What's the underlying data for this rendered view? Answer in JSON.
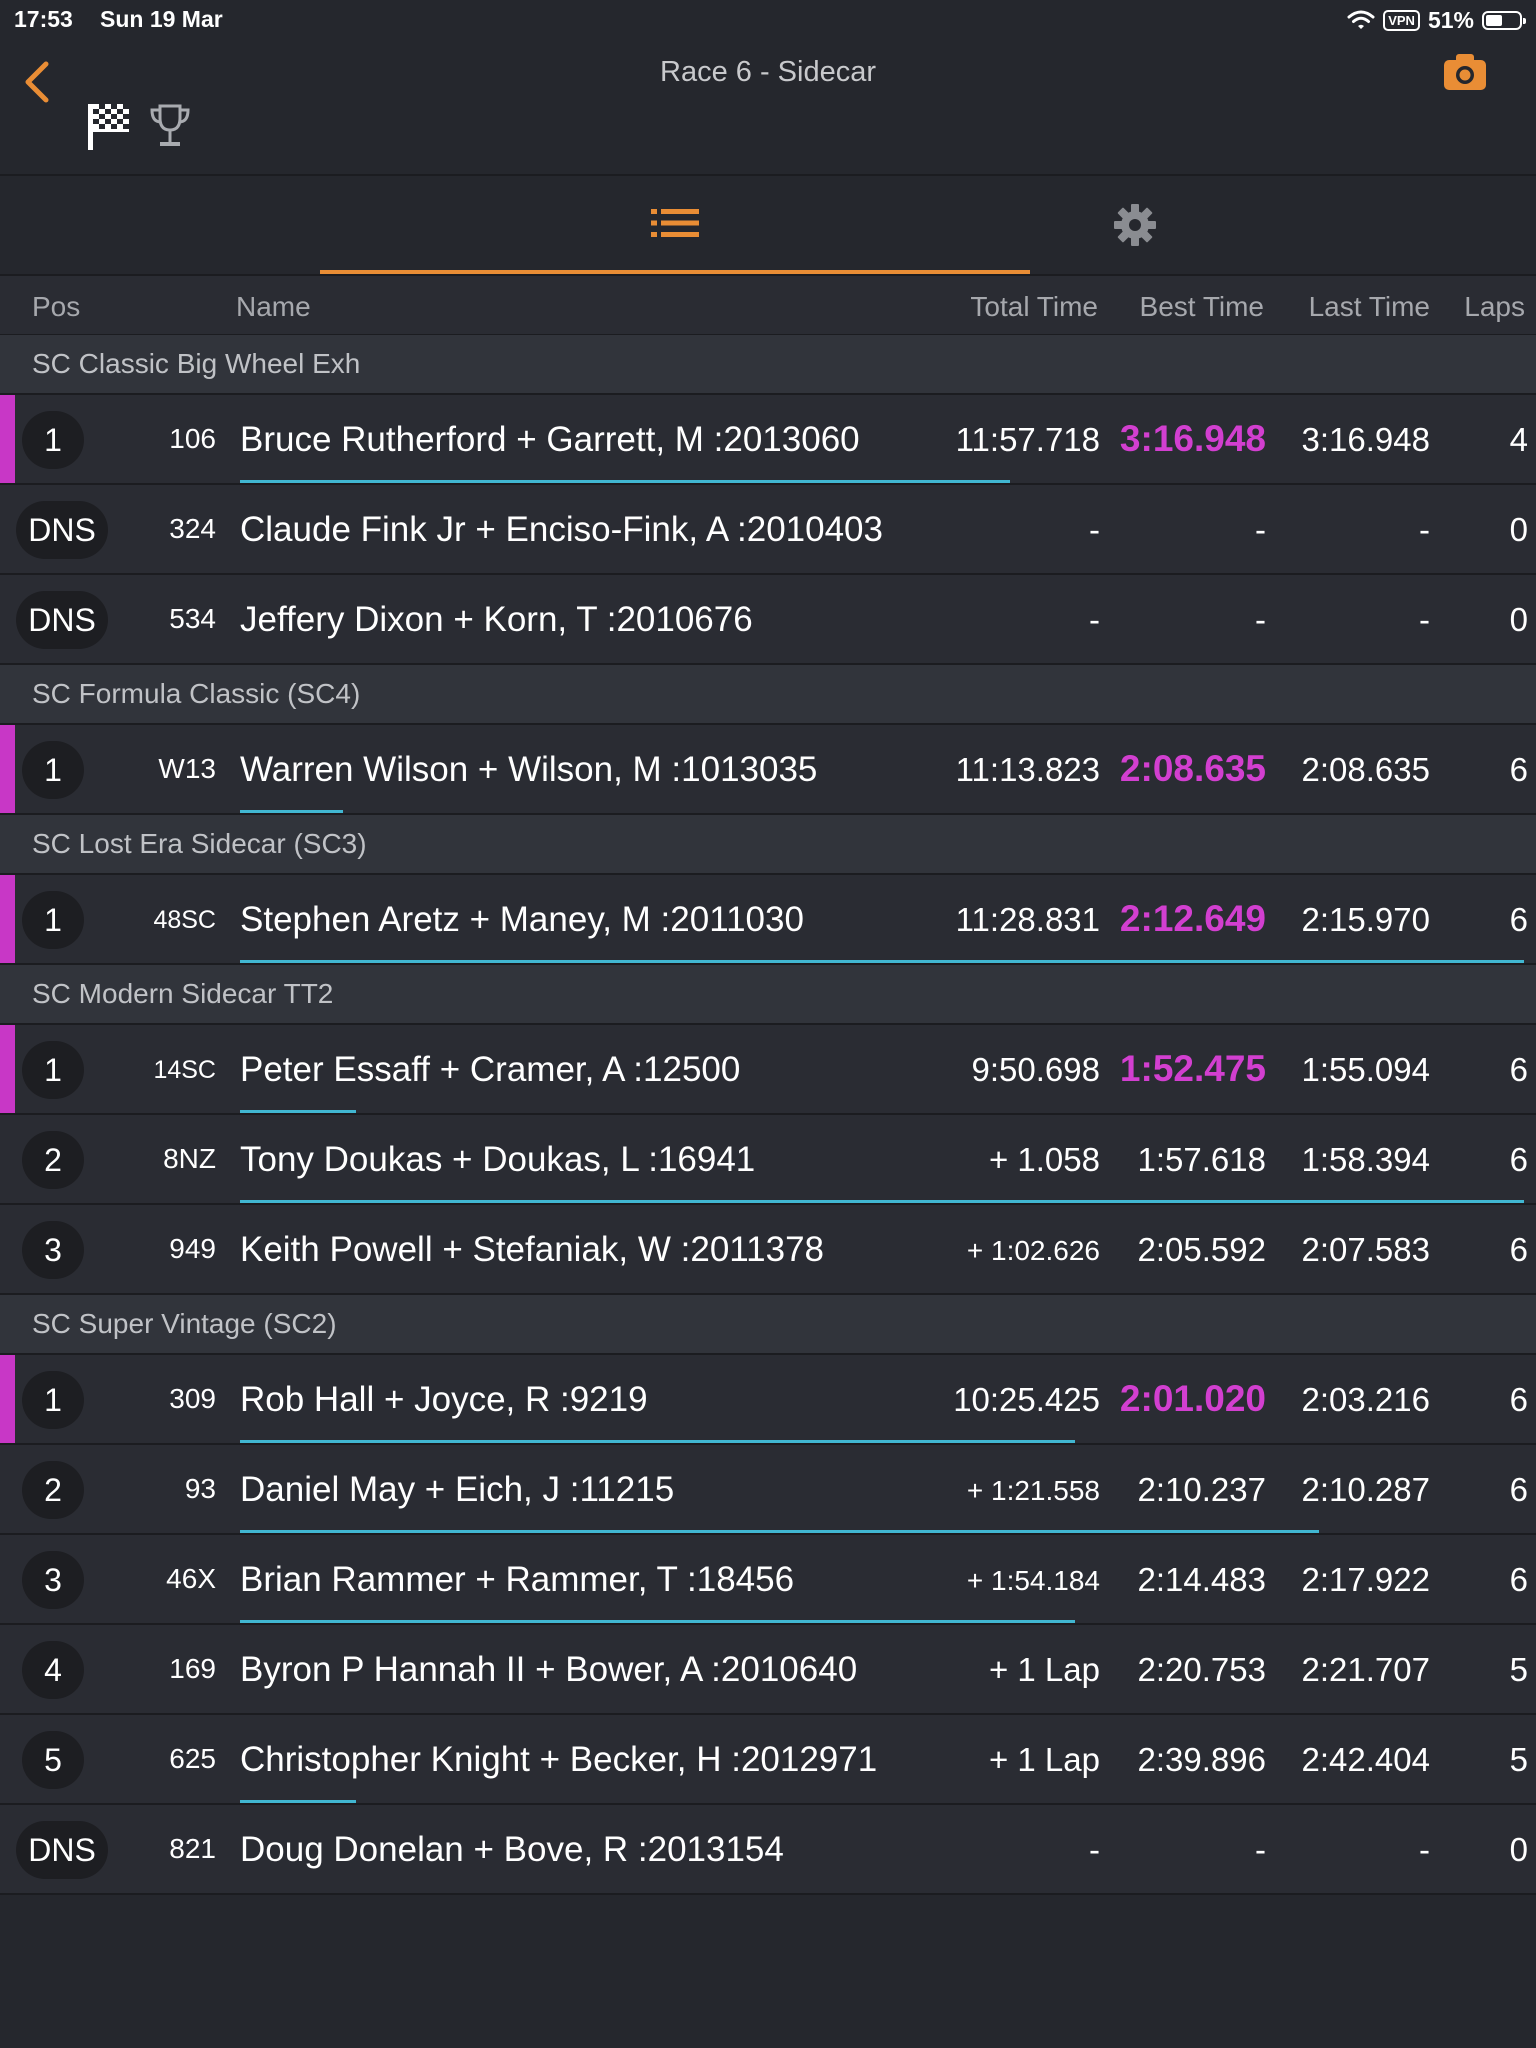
{
  "status": {
    "time": "17:53",
    "date": "Sun 19 Mar",
    "vpn": "VPN",
    "battery": "51%",
    "battery_level": 0.51
  },
  "nav": {
    "title": "Race 6 - Sidecar"
  },
  "columns": {
    "pos": "Pos",
    "name": "Name",
    "total": "Total Time",
    "best": "Best Time",
    "last": "Last Time",
    "laps": "Laps"
  },
  "icons": {
    "back": "chevron-left-icon",
    "camera": "camera-icon",
    "flag": "checkered-flag-icon",
    "trophy": "trophy-icon",
    "list": "list-icon",
    "settings": "gear-icon"
  },
  "colors": {
    "accent": "#e98d35",
    "fastest": "#d23fd0",
    "progress": "#41b7d2",
    "leader": "#c837c6"
  },
  "classes": [
    {
      "name": "SC Classic Big Wheel Exh",
      "rows": [
        {
          "pos": "1",
          "num": "106",
          "name": "Bruce Rutherford + Garrett, M :2013060",
          "total": "11:57.718",
          "best": "3:16.948",
          "last": "3:16.948",
          "laps": "4",
          "best_fastest": true,
          "leader": true,
          "progress": 0.6
        },
        {
          "pos": "DNS",
          "num": "324",
          "name": "Claude Fink Jr + Enciso-Fink, A :2010403",
          "total": "-",
          "best": "-",
          "last": "-",
          "laps": "0",
          "best_fastest": false,
          "leader": false,
          "progress": 0
        },
        {
          "pos": "DNS",
          "num": "534",
          "name": "Jeffery Dixon + Korn, T :2010676",
          "total": "-",
          "best": "-",
          "last": "-",
          "laps": "0",
          "best_fastest": false,
          "leader": false,
          "progress": 0
        }
      ]
    },
    {
      "name": "SC Formula Classic (SC4)",
      "rows": [
        {
          "pos": "1",
          "num": "W13",
          "name": "Warren Wilson + Wilson, M :1013035",
          "total": "11:13.823",
          "best": "2:08.635",
          "last": "2:08.635",
          "laps": "6",
          "best_fastest": true,
          "leader": true,
          "progress": 0.08
        }
      ]
    },
    {
      "name": "SC Lost Era Sidecar (SC3)",
      "rows": [
        {
          "pos": "1",
          "num": "48SC",
          "name": "Stephen Aretz + Maney, M :2011030",
          "total": "11:28.831",
          "best": "2:12.649",
          "last": "2:15.970",
          "laps": "6",
          "best_fastest": true,
          "leader": true,
          "progress": 1.0
        }
      ]
    },
    {
      "name": "SC Modern Sidecar TT2",
      "rows": [
        {
          "pos": "1",
          "num": "14SC",
          "name": "Peter Essaff + Cramer, A :12500",
          "total": "9:50.698",
          "best": "1:52.475",
          "last": "1:55.094",
          "laps": "6",
          "best_fastest": true,
          "leader": true,
          "progress": 0.09
        },
        {
          "pos": "2",
          "num": "8NZ",
          "name": "Tony Doukas + Doukas, L :16941",
          "total": "+ 1.058",
          "best": "1:57.618",
          "last": "1:58.394",
          "laps": "6",
          "best_fastest": false,
          "leader": false,
          "progress": 1.0
        },
        {
          "pos": "3",
          "num": "949",
          "name": "Keith Powell + Stefaniak, W :2011378",
          "total": "+ 1:02.626",
          "best": "2:05.592",
          "last": "2:07.583",
          "laps": "6",
          "best_fastest": false,
          "leader": false,
          "progress": 0
        }
      ]
    },
    {
      "name": "SC Super Vintage (SC2)",
      "rows": [
        {
          "pos": "1",
          "num": "309",
          "name": "Rob Hall + Joyce, R :9219",
          "total": "10:25.425",
          "best": "2:01.020",
          "last": "2:03.216",
          "laps": "6",
          "best_fastest": true,
          "leader": true,
          "progress": 0.65
        },
        {
          "pos": "2",
          "num": "93",
          "name": "Daniel May + Eich, J :11215",
          "total": "+ 1:21.558",
          "best": "2:10.237",
          "last": "2:10.287",
          "laps": "6",
          "best_fastest": false,
          "leader": false,
          "progress": 0.84
        },
        {
          "pos": "3",
          "num": "46X",
          "name": "Brian Rammer + Rammer, T :18456",
          "total": "+ 1:54.184",
          "best": "2:14.483",
          "last": "2:17.922",
          "laps": "6",
          "best_fastest": false,
          "leader": false,
          "progress": 0.65
        },
        {
          "pos": "4",
          "num": "169",
          "name": "Byron P Hannah II + Bower, A :2010640",
          "total": "+ 1 Lap",
          "best": "2:20.753",
          "last": "2:21.707",
          "laps": "5",
          "best_fastest": false,
          "leader": false,
          "progress": 0
        },
        {
          "pos": "5",
          "num": "625",
          "name": "Christopher Knight + Becker, H :2012971",
          "total": "+ 1 Lap",
          "best": "2:39.896",
          "last": "2:42.404",
          "laps": "5",
          "best_fastest": false,
          "leader": false,
          "progress": 0.09
        },
        {
          "pos": "DNS",
          "num": "821",
          "name": "Doug Donelan + Bove, R :2013154",
          "total": "-",
          "best": "-",
          "last": "-",
          "laps": "0",
          "best_fastest": false,
          "leader": false,
          "progress": 0
        }
      ]
    }
  ]
}
